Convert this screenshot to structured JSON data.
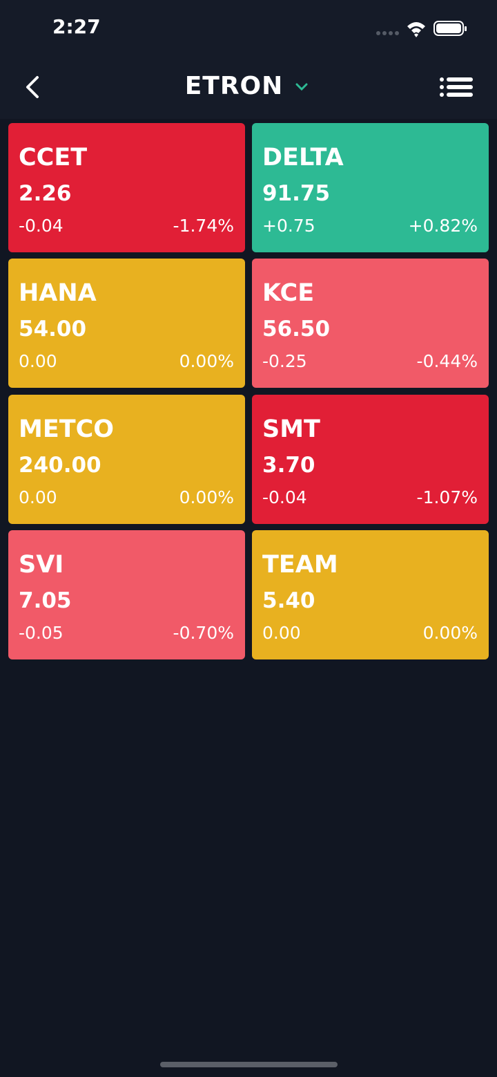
{
  "status_bar": {
    "time": "2:27"
  },
  "header": {
    "title": "ETRON"
  },
  "tiles": [
    {
      "symbol": "CCET",
      "price": "2.26",
      "change": "-0.04",
      "percent": "-1.74%",
      "color": "#e11f36"
    },
    {
      "symbol": "DELTA",
      "price": "91.75",
      "change": "+0.75",
      "percent": "+0.82%",
      "color": "#2dba94"
    },
    {
      "symbol": "HANA",
      "price": "54.00",
      "change": "0.00",
      "percent": "0.00%",
      "color": "#e8b120"
    },
    {
      "symbol": "KCE",
      "price": "56.50",
      "change": "-0.25",
      "percent": "-0.44%",
      "color": "#f15a68"
    },
    {
      "symbol": "METCO",
      "price": "240.00",
      "change": "0.00",
      "percent": "0.00%",
      "color": "#e8b120"
    },
    {
      "symbol": "SMT",
      "price": "3.70",
      "change": "-0.04",
      "percent": "-1.07%",
      "color": "#e11f36"
    },
    {
      "symbol": "SVI",
      "price": "7.05",
      "change": "-0.05",
      "percent": "-0.70%",
      "color": "#f15a68"
    },
    {
      "symbol": "TEAM",
      "price": "5.40",
      "change": "0.00",
      "percent": "0.00%",
      "color": "#e8b120"
    }
  ]
}
